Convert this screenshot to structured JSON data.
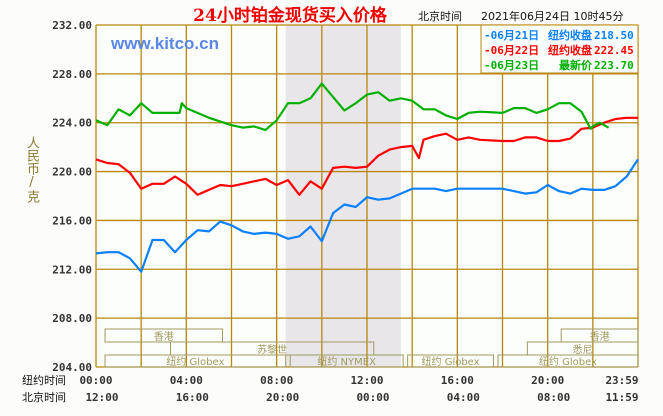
{
  "chart_data": {
    "type": "line",
    "title": "24小时铂金现货买入价格",
    "header_timezone": "北京时间",
    "header_datetime": "2021年06月24日 10时45分",
    "watermark": "www.kitco.cn",
    "ylabel": "人民币/克",
    "ylim": [
      204,
      232
    ],
    "yticks": [
      "232.00",
      "228.00",
      "224.00",
      "220.00",
      "216.00",
      "212.00",
      "208.00",
      "204.00"
    ],
    "xlim_hours": [
      0,
      24
    ],
    "x_row_labels": [
      "纽约时间",
      "北京时间"
    ],
    "x_ticks_ny": [
      "00:00",
      "04:00",
      "08:00",
      "12:00",
      "16:00",
      "20:00",
      "23:59"
    ],
    "x_ticks_beijing": [
      "12:00",
      "16:00",
      "20:00",
      "00:00",
      "04:00",
      "08:00",
      "11:59"
    ],
    "grid": true,
    "shaded_hours": [
      8.4,
      13.5
    ],
    "legend_placement": "top-right",
    "series": [
      {
        "name": "-06月21日",
        "label": "纽约收盘",
        "value": "218.50",
        "color": "#0a80ff",
        "x": [
          0,
          0.5,
          1,
          1.5,
          2,
          2.5,
          3,
          3.5,
          4,
          4.5,
          5,
          5.5,
          6,
          6.5,
          7,
          7.5,
          8,
          8.5,
          9,
          9.5,
          10,
          10.5,
          11,
          11.5,
          12,
          12.5,
          13,
          13.5,
          14,
          15,
          15.5,
          16,
          17,
          18,
          18.5,
          19,
          19.5,
          20,
          20.5,
          21,
          21.5,
          22,
          22.5,
          23,
          23.5,
          24
        ],
        "y": [
          213.3,
          213.4,
          213.4,
          212.9,
          211.8,
          214.4,
          214.4,
          213.4,
          214.4,
          215.2,
          215.1,
          215.9,
          215.6,
          215.1,
          214.9,
          215.0,
          214.9,
          214.5,
          214.7,
          215.5,
          214.3,
          216.6,
          217.3,
          217.1,
          217.9,
          217.7,
          217.8,
          218.2,
          218.6,
          218.6,
          218.4,
          218.6,
          218.6,
          218.6,
          218.4,
          218.2,
          218.3,
          218.9,
          218.4,
          218.2,
          218.6,
          218.5,
          218.5,
          218.8,
          219.6,
          221.0
        ]
      },
      {
        "name": "-06月22日",
        "label": "纽约收盘",
        "value": "222.45",
        "color": "#ff0000",
        "x": [
          0,
          0.5,
          1,
          1.5,
          2,
          2.5,
          3,
          3.5,
          4,
          4.5,
          5,
          5.5,
          6,
          6.5,
          7,
          7.5,
          8,
          8.5,
          9,
          9.5,
          10,
          10.5,
          11,
          11.5,
          12,
          12.5,
          13,
          13.5,
          14,
          14.3,
          14.5,
          15,
          15.5,
          16,
          16.5,
          17,
          18,
          18.5,
          19,
          19.5,
          20,
          20.5,
          21,
          21.5,
          22,
          22.5,
          23,
          23.5,
          24
        ],
        "y": [
          221.0,
          220.7,
          220.6,
          219.9,
          218.6,
          219.0,
          219.0,
          219.6,
          219.0,
          218.1,
          218.5,
          218.9,
          218.8,
          219.0,
          219.2,
          219.4,
          218.9,
          219.3,
          218.1,
          219.2,
          218.6,
          220.3,
          220.4,
          220.3,
          220.4,
          221.3,
          221.8,
          222.0,
          222.1,
          221.1,
          222.6,
          222.9,
          223.1,
          222.6,
          222.8,
          222.6,
          222.5,
          222.5,
          222.8,
          222.8,
          222.5,
          222.5,
          222.7,
          223.5,
          223.6,
          224.0,
          224.3,
          224.4,
          224.4
        ]
      },
      {
        "name": "-06月23日",
        "label": "最新价",
        "value": "223.70",
        "color": "#00b000",
        "x": [
          0,
          0.5,
          1,
          1.5,
          2,
          2.5,
          3,
          3.7,
          3.8,
          4,
          5,
          6,
          6.5,
          7,
          7.5,
          8,
          8.5,
          9,
          9.5,
          10,
          10.5,
          11,
          11.5,
          12,
          12.5,
          13,
          13.5,
          14,
          14.5,
          15,
          15.5,
          16,
          16.5,
          17,
          18,
          18.5,
          19,
          19.5,
          20,
          20.5,
          21,
          21.5,
          21.9,
          22,
          22.3,
          22.7
        ],
        "y": [
          224.2,
          223.8,
          225.1,
          224.6,
          225.6,
          224.8,
          224.8,
          224.8,
          225.6,
          225.2,
          224.4,
          223.8,
          223.6,
          223.7,
          223.4,
          224.2,
          225.6,
          225.6,
          226.0,
          227.2,
          226.1,
          225.0,
          225.6,
          226.3,
          226.5,
          225.8,
          226.0,
          225.8,
          225.1,
          225.1,
          224.6,
          224.3,
          224.8,
          224.9,
          224.8,
          225.2,
          225.2,
          224.8,
          225.1,
          225.6,
          225.6,
          224.9,
          223.5,
          223.7,
          224.0,
          223.6
        ]
      }
    ],
    "sessions": [
      {
        "label": "香港",
        "start": 0.4,
        "end": 5.6,
        "row": 0
      },
      {
        "label": "香港",
        "start": 20.6,
        "end": 24,
        "row": 0
      },
      {
        "label": "苏黎世",
        "start": 3.3,
        "end": 12.3,
        "row": 1
      },
      {
        "label": "悉尼",
        "start": 19.1,
        "end": 24,
        "row": 1
      },
      {
        "label": "纽约 Globex",
        "start": 0.4,
        "end": 8.4,
        "row": 2
      },
      {
        "label": "纽约 NYMEX",
        "start": 8.6,
        "end": 13.6,
        "row": 2
      },
      {
        "label": "纽约 Globex",
        "start": 13.8,
        "end": 17.6,
        "row": 2
      },
      {
        "label": "纽约 Globex",
        "start": 17.8,
        "end": 24,
        "row": 2
      }
    ]
  }
}
